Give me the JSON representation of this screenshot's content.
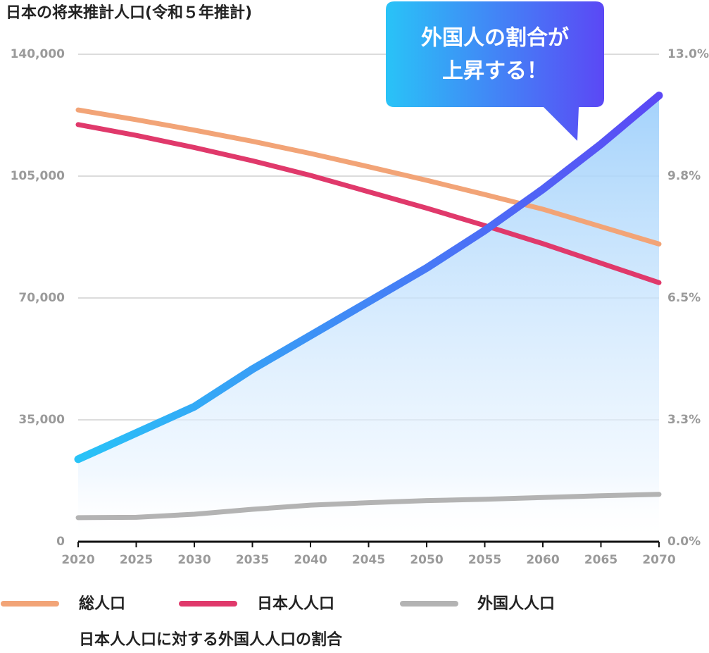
{
  "chart_data": {
    "type": "line",
    "title": "日本の将来推計人口(令和５年推計)",
    "annotations": [
      "外国人の割合が",
      "上昇する！"
    ],
    "x": [
      2020,
      2025,
      2030,
      2035,
      2040,
      2045,
      2050,
      2055,
      2060,
      2065,
      2070
    ],
    "xlim": [
      2020,
      2070
    ],
    "xticks": [
      2020,
      2025,
      2030,
      2035,
      2040,
      2045,
      2050,
      2055,
      2060,
      2065,
      2070
    ],
    "ylim": [
      0,
      140000
    ],
    "yticks": [
      0,
      {
        "value": 35000,
        "label": "35,000"
      },
      {
        "value": 70000,
        "label": "70,000"
      },
      {
        "value": 105000,
        "label": "105,000"
      },
      {
        "value": 140000,
        "label": "140,000"
      }
    ],
    "y2lim": [
      0,
      13
    ],
    "y2ticks": [
      {
        "value": 0,
        "label": "0.0%"
      },
      {
        "value": 3.25,
        "label": "3.3%"
      },
      {
        "value": 6.5,
        "label": "6.5%"
      },
      {
        "value": 9.75,
        "label": "9.8%"
      },
      {
        "value": 13,
        "label": "13.0%"
      }
    ],
    "grid": true,
    "series": [
      {
        "name": "総人口",
        "color": "#f2a477",
        "values": [
          124000,
          121200,
          118200,
          115000,
          111500,
          107700,
          103800,
          99700,
          95500,
          90500,
          85500
        ]
      },
      {
        "name": "日本人人口",
        "color": "#e0396b",
        "values": [
          119800,
          116700,
          113200,
          109400,
          105200,
          100500,
          95800,
          90800,
          85600,
          80000,
          74400
        ]
      },
      {
        "name": "外国人人口",
        "color": "#b3b3b3",
        "values": [
          6900,
          7000,
          7900,
          9300,
          10500,
          11200,
          11800,
          12200,
          12700,
          13200,
          13600
        ]
      },
      {
        "name": "日本人人口に対する外国人人口の割合",
        "color": [
          "#29c3f7",
          "#5b48f5"
        ],
        "axis": "y2",
        "values": [
          2.2,
          2.9,
          3.6,
          4.6,
          5.5,
          6.4,
          7.3,
          8.3,
          9.4,
          10.6,
          11.9
        ]
      }
    ]
  }
}
